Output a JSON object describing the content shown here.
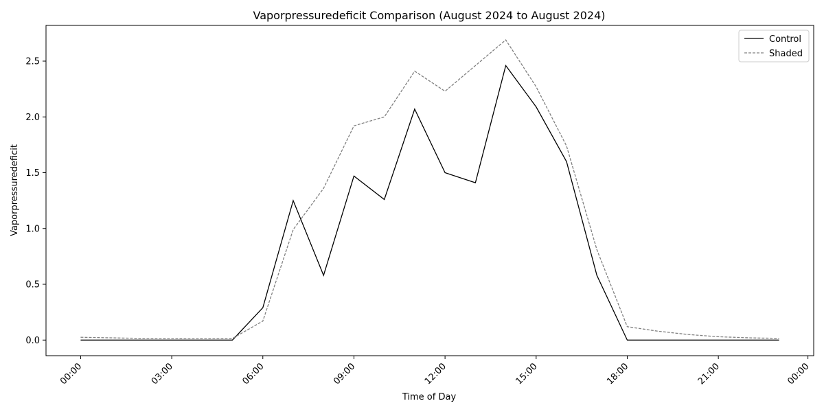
{
  "chart_data": {
    "type": "line",
    "title": "Vaporpressuredeficit Comparison (August 2024 to August 2024)",
    "xlabel": "Time of Day",
    "ylabel": "Vaporpressuredeficit",
    "x": [
      "00:00",
      "01:00",
      "02:00",
      "03:00",
      "04:00",
      "05:00",
      "06:00",
      "07:00",
      "08:00",
      "09:00",
      "10:00",
      "11:00",
      "12:00",
      "13:00",
      "14:00",
      "15:00",
      "16:00",
      "17:00",
      "18:00",
      "19:00",
      "20:00",
      "21:00",
      "22:00",
      "23:00"
    ],
    "x_ticks": [
      "00:00",
      "03:00",
      "06:00",
      "09:00",
      "12:00",
      "15:00",
      "18:00",
      "21:00",
      "00:00"
    ],
    "y_ticks": [
      "0.0",
      "0.5",
      "1.0",
      "1.5",
      "2.0",
      "2.5"
    ],
    "ylim": [
      -0.14,
      2.82
    ],
    "grid": false,
    "legend_position": "top-right",
    "series": [
      {
        "name": "Control",
        "color": "#000000",
        "style": "solid",
        "values": [
          0.0,
          0.0,
          0.0,
          0.0,
          0.0,
          0.0,
          0.29,
          1.25,
          0.58,
          1.47,
          1.26,
          2.07,
          1.5,
          1.41,
          2.46,
          2.09,
          1.6,
          0.58,
          0.0,
          0.0,
          0.0,
          0.0,
          0.0,
          0.0
        ]
      },
      {
        "name": "Shaded",
        "color": "#808080",
        "style": "dashed",
        "values": [
          0.025,
          0.02,
          0.015,
          0.013,
          0.012,
          0.015,
          0.17,
          0.99,
          1.36,
          1.92,
          2.0,
          2.41,
          2.23,
          2.46,
          2.69,
          2.27,
          1.74,
          0.81,
          0.12,
          0.08,
          0.05,
          0.03,
          0.02,
          0.015
        ]
      }
    ]
  }
}
